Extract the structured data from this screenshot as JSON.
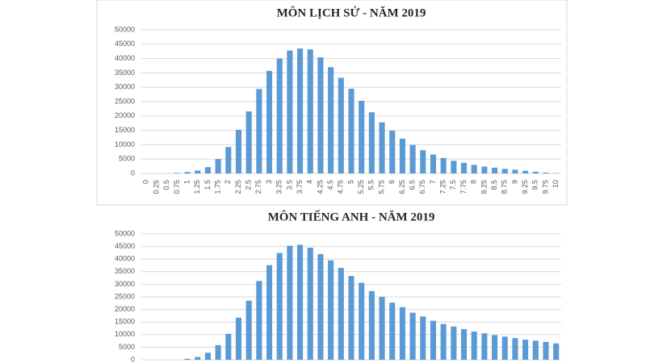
{
  "chart_data": [
    {
      "type": "bar",
      "title": "MÔN LỊCH SỬ - NĂM 2019",
      "categories": [
        0,
        0.25,
        0.5,
        0.75,
        1,
        1.25,
        1.5,
        1.75,
        2,
        2.25,
        2.5,
        2.75,
        3,
        3.25,
        3.5,
        3.75,
        4,
        4.25,
        4.5,
        4.75,
        5,
        5.25,
        5.5,
        5.75,
        6,
        6.25,
        6.5,
        6.75,
        7,
        7.25,
        7.5,
        7.75,
        8,
        8.25,
        8.5,
        8.75,
        9,
        9.25,
        9.5,
        9.75,
        10
      ],
      "values": [
        0,
        0,
        50,
        200,
        500,
        1000,
        2200,
        5000,
        9200,
        15200,
        21600,
        29400,
        35700,
        40000,
        42800,
        43500,
        43200,
        40400,
        37000,
        33300,
        29500,
        25300,
        21300,
        17800,
        14900,
        12100,
        9900,
        8100,
        6600,
        5400,
        4400,
        3700,
        3000,
        2400,
        2000,
        1600,
        1300,
        900,
        600,
        300,
        100
      ],
      "color": "#5b9bd5",
      "ylim": [
        0,
        50000
      ],
      "yticks": [
        0,
        5000,
        10000,
        15000,
        20000,
        25000,
        30000,
        35000,
        40000,
        45000,
        50000
      ],
      "grid": true
    },
    {
      "type": "bar",
      "title": "MÔN TIẾNG ANH - NĂM 2019",
      "categories": [
        null,
        null,
        null,
        null,
        null,
        null,
        null,
        null,
        null,
        null,
        null,
        null,
        null,
        null,
        null,
        null,
        null,
        null,
        null,
        null,
        null,
        null,
        null,
        null,
        null,
        null,
        null,
        null,
        null,
        null,
        null,
        null,
        null,
        null,
        null,
        null,
        null,
        null,
        null,
        null,
        null
      ],
      "values": [
        0,
        0,
        0,
        0,
        400,
        1100,
        2800,
        5800,
        10300,
        16700,
        23500,
        31300,
        37600,
        42400,
        45300,
        45700,
        44500,
        42000,
        39500,
        36500,
        33300,
        30600,
        27300,
        25000,
        22700,
        20900,
        18700,
        17200,
        15500,
        14200,
        13200,
        12200,
        11200,
        10500,
        9800,
        9200,
        8600,
        8000,
        7600,
        7100,
        6500
      ],
      "color": "#5b9bd5",
      "ylim": [
        0,
        50000
      ],
      "yticks": [
        0,
        5000,
        10000,
        15000,
        20000,
        25000,
        30000,
        35000,
        40000,
        45000,
        50000
      ],
      "grid": true
    }
  ]
}
